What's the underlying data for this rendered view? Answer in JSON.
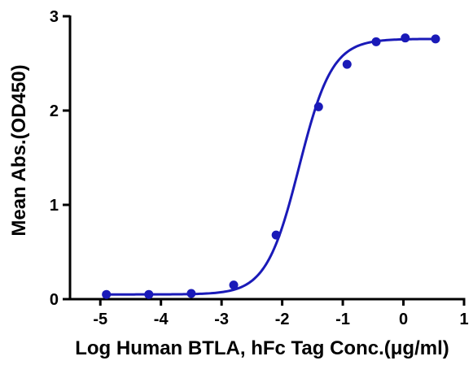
{
  "chart_data": {
    "type": "scatter",
    "title": "",
    "xlabel": "Log Human BTLA, hFc Tag Conc.(μg/ml)",
    "ylabel": "Mean Abs.(OD450)",
    "xlim": [
      -5.5,
      1
    ],
    "ylim": [
      0,
      3
    ],
    "x_ticks": [
      "-5",
      "-4",
      "-3",
      "-2",
      "-1",
      "0",
      "1"
    ],
    "y_ticks": [
      "0",
      "1",
      "2",
      "3"
    ],
    "grid": false,
    "legend": "none",
    "series": [
      {
        "points": [
          {
            "x": -4.9,
            "y": 0.05
          },
          {
            "x": -4.2,
            "y": 0.05
          },
          {
            "x": -3.5,
            "y": 0.06
          },
          {
            "x": -2.8,
            "y": 0.15
          },
          {
            "x": -2.1,
            "y": 0.68
          },
          {
            "x": -1.4,
            "y": 2.04
          },
          {
            "x": -0.93,
            "y": 2.49
          },
          {
            "x": -0.45,
            "y": 2.73
          },
          {
            "x": 0.03,
            "y": 2.77
          },
          {
            "x": 0.53,
            "y": 2.76
          }
        ],
        "fit": {
          "model": "4PL",
          "bottom": 0.05,
          "top": 2.76,
          "logEC50": -1.72,
          "hill": 1.6
        }
      }
    ],
    "color": "#1a1ab8"
  }
}
